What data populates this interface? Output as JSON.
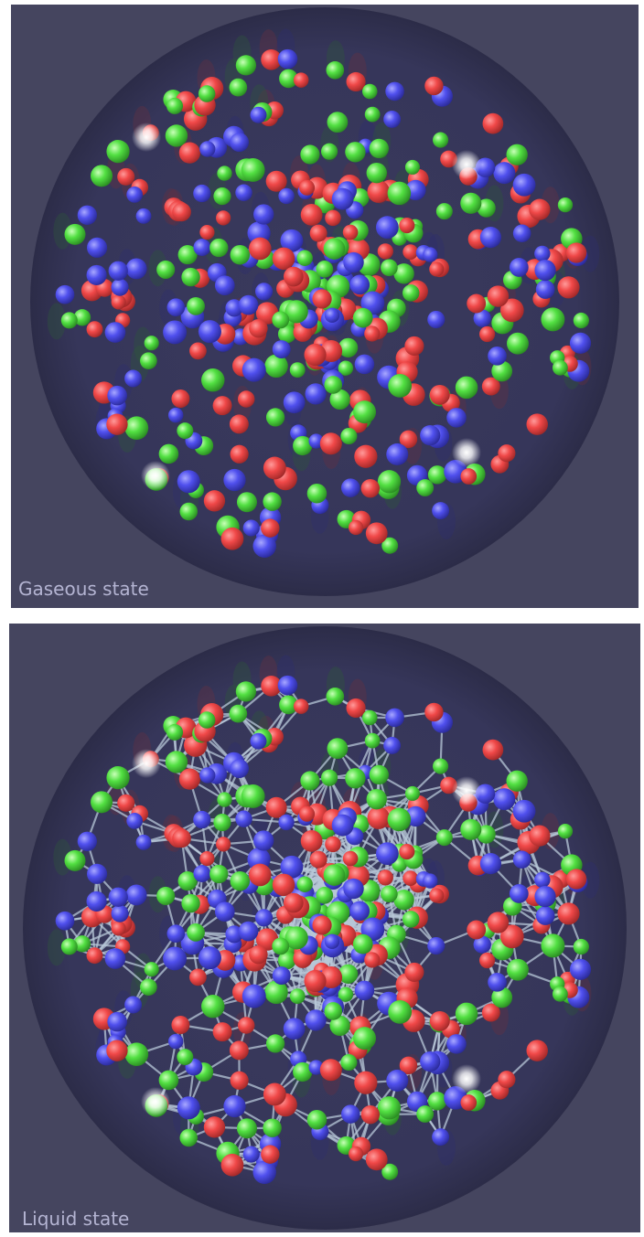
{
  "panels": [
    {
      "label": "Gaseous state"
    },
    {
      "label": "Liquid state"
    }
  ]
}
